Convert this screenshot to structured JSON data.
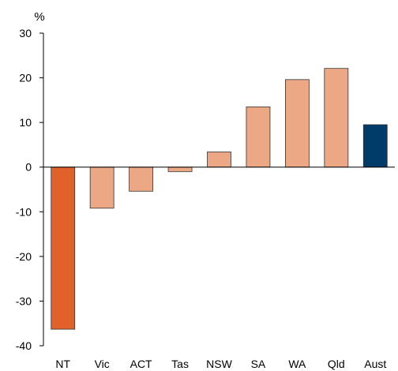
{
  "chart_data": {
    "type": "bar",
    "title": "",
    "xlabel": "",
    "ylabel": "%",
    "ylim": [
      -40,
      30
    ],
    "yticks": [
      30,
      20,
      10,
      0,
      -10,
      -20,
      -30,
      -40
    ],
    "grid": false,
    "legend": "none",
    "categories": [
      "NT",
      "Vic",
      "ACT",
      "Tas",
      "NSW",
      "SA",
      "WA",
      "Qld",
      "Aust"
    ],
    "values": [
      -36.3,
      -9.2,
      -5.4,
      -1.0,
      3.4,
      13.5,
      19.6,
      22.1,
      9.5
    ],
    "bar_colors": [
      "#e0622a",
      "#eca884",
      "#eca884",
      "#eca884",
      "#eca884",
      "#eca884",
      "#eca884",
      "#eca884",
      "#003c6a"
    ],
    "bar_stroke": "#333333",
    "axis_color": "#000000"
  }
}
